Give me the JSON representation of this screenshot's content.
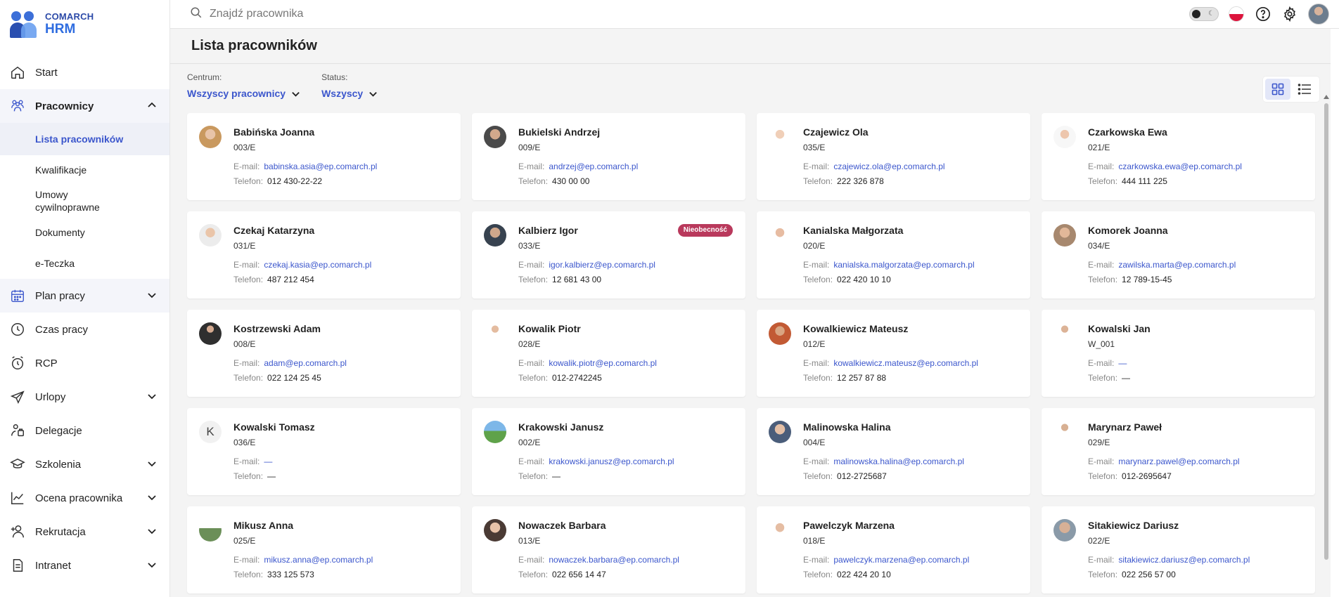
{
  "logo": {
    "line1": "COMARCH",
    "line2": "HRM"
  },
  "nav": {
    "start": "Start",
    "pracownicy": "Pracownicy",
    "sub": {
      "lista": "Lista pracowników",
      "kwalifikacje": "Kwalifikacje",
      "umowy": "Umowy cywilnoprawne",
      "dokumenty": "Dokumenty",
      "eteczka": "e-Teczka"
    },
    "plan_pracy": "Plan pracy",
    "czas_pracy": "Czas pracy",
    "rcp": "RCP",
    "urlopy": "Urlopy",
    "delegacje": "Delegacje",
    "szkolenia": "Szkolenia",
    "ocena": "Ocena pracownika",
    "rekrutacja": "Rekrutacja",
    "intranet": "Intranet"
  },
  "search": {
    "placeholder": "Znajdź pracownika"
  },
  "page": {
    "title": "Lista pracowników"
  },
  "filters": {
    "centrum": {
      "label": "Centrum:",
      "value": "Wszyscy pracownicy"
    },
    "status": {
      "label": "Status:",
      "value": "Wszyscy"
    }
  },
  "labels": {
    "email": "E-mail:",
    "phone": "Telefon:"
  },
  "employees": [
    {
      "name": "Babińska Joanna",
      "code": "003/E",
      "email": "babinska.asia@ep.comarch.pl",
      "phone": "012 430-22-22"
    },
    {
      "name": "Bukielski Andrzej",
      "code": "009/E",
      "email": "andrzej@ep.comarch.pl",
      "phone": "430 00 00"
    },
    {
      "name": "Czajewicz Ola",
      "code": "035/E",
      "email": "czajewicz.ola@ep.comarch.pl",
      "phone": "222 326 878"
    },
    {
      "name": "Czarkowska Ewa",
      "code": "021/E",
      "email": "czarkowska.ewa@ep.comarch.pl",
      "phone": "444 111 225"
    },
    {
      "name": "Czekaj Katarzyna",
      "code": "031/E",
      "email": "czekaj.kasia@ep.comarch.pl",
      "phone": "487 212 454"
    },
    {
      "name": "Kalbierz Igor",
      "code": "033/E",
      "email": "igor.kalbierz@ep.comarch.pl",
      "phone": "12 681 43 00",
      "badge": "Nieobecność"
    },
    {
      "name": "Kanialska Małgorzata",
      "code": "020/E",
      "email": "kanialska.malgorzata@ep.comarch.pl",
      "phone": "022 420 10 10"
    },
    {
      "name": "Komorek Joanna",
      "code": "034/E",
      "email": "zawilska.marta@ep.comarch.pl",
      "phone": "12 789-15-45"
    },
    {
      "name": "Kostrzewski Adam",
      "code": "008/E",
      "email": "adam@ep.comarch.pl",
      "phone": "022 124 25 45"
    },
    {
      "name": "Kowalik Piotr",
      "code": "028/E",
      "email": "kowalik.piotr@ep.comarch.pl",
      "phone": "012-2742245"
    },
    {
      "name": "Kowalkiewicz Mateusz",
      "code": "012/E",
      "email": "kowalkiewicz.mateusz@ep.comarch.pl",
      "phone": "12 257 87 88"
    },
    {
      "name": "Kowalski Jan",
      "code": "W_001",
      "email": "—",
      "phone": "—"
    },
    {
      "name": "Kowalski Tomasz",
      "code": "036/E",
      "email": "—",
      "phone": "—",
      "initial": "K"
    },
    {
      "name": "Krakowski Janusz",
      "code": "002/E",
      "email": "krakowski.janusz@ep.comarch.pl",
      "phone": "—"
    },
    {
      "name": "Malinowska Halina",
      "code": "004/E",
      "email": "malinowska.halina@ep.comarch.pl",
      "phone": "012-2725687"
    },
    {
      "name": "Marynarz Paweł",
      "code": "029/E",
      "email": "marynarz.pawel@ep.comarch.pl",
      "phone": "012-2695647"
    },
    {
      "name": "Mikusz Anna",
      "code": "025/E",
      "email": "mikusz.anna@ep.comarch.pl",
      "phone": "333 125 573"
    },
    {
      "name": "Nowaczek Barbara",
      "code": "013/E",
      "email": "nowaczek.barbara@ep.comarch.pl",
      "phone": "022 656 14 47"
    },
    {
      "name": "Pawelczyk Marzena",
      "code": "018/E",
      "email": "pawelczyk.marzena@ep.comarch.pl",
      "phone": "022 424 20 10"
    },
    {
      "name": "Sitakiewicz Dariusz",
      "code": "022/E",
      "email": "sitakiewicz.dariusz@ep.comarch.pl",
      "phone": "022 256 57 00"
    }
  ],
  "colors": {
    "accent": "#3b56cc",
    "badge": "#b9395c",
    "background": "#f4f4f4"
  }
}
